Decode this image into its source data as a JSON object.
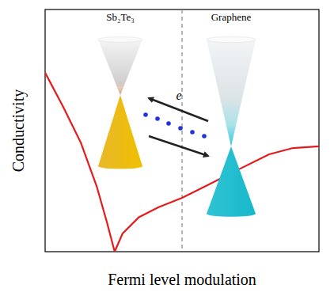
{
  "chart_data": {
    "type": "line",
    "x_label": "Fermi level modulation",
    "y_label": "Conductivity",
    "x": [
      0,
      0.66,
      1.3,
      1.88,
      2.25,
      2.54,
      2.83,
      3.41,
      4.13,
      5.0,
      5.87,
      7.02,
      8.18,
      9.05,
      10
    ],
    "values": [
      7.39,
      5.98,
      4.51,
      2.71,
      1.24,
      0,
      0.75,
      1.41,
      1.83,
      2.22,
      2.71,
      3.37,
      4.02,
      4.28,
      4.35
    ],
    "color": "#e41a1c",
    "xlim": [
      0,
      10
    ],
    "ylim": [
      0,
      10
    ],
    "tick_labels": false,
    "annotations": [
      "Sb₂Te₃",
      "Graphene",
      "e"
    ]
  }
}
